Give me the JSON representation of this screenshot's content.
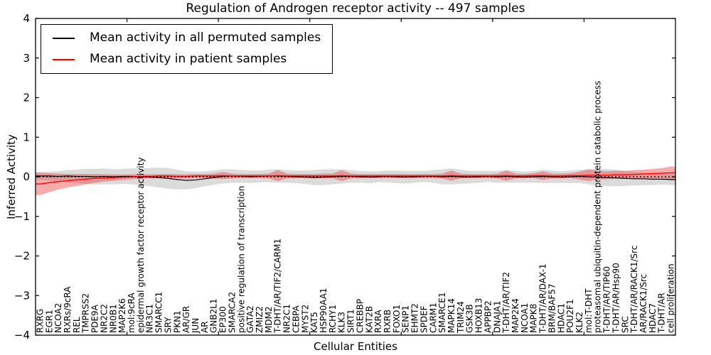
{
  "chart_data": {
    "type": "line",
    "title": "Regulation of Androgen receptor activity -- 497 samples",
    "xlabel": "Cellular Entities",
    "ylabel": "Inferred Activity",
    "ylim": [
      -4,
      4
    ],
    "yticks": [
      4,
      3,
      2,
      1,
      0,
      -1,
      -2,
      -3,
      -4
    ],
    "xtick_positions": [
      10,
      20,
      30,
      40,
      50,
      60
    ],
    "grid": false,
    "zero_line": {
      "style": "dashed",
      "color": "#000000",
      "y": 0
    },
    "legend": {
      "position": "upper-left",
      "border_color": "#000000"
    },
    "axis_color": "#000000",
    "categories": [
      "RXRG",
      "EGR1",
      "NCOA2",
      "RXRs/9cRA",
      "REL",
      "TMPRSS2",
      "PDE9A",
      "NR2C2",
      "NR0B1",
      "MAP2K6",
      "mol:9cRA",
      "epidermal growth factor receptor activity",
      "NR3C1",
      "SMARCC1",
      "SRY",
      "PKN1",
      "AR/GR",
      "JUN",
      "AR",
      "GNB2L1",
      "EP300",
      "SMARCA2",
      "positive regulation of transcription",
      "GATA2",
      "ZMIZ2",
      "MDM2",
      "T-DHT/AR/TIF2/CARM1",
      "NR2C1",
      "CEBPA",
      "MYST2",
      "KAT5",
      "HSP90AA1",
      "RCHY1",
      "KLK3",
      "SIRT1",
      "CREBBP",
      "KAT2B",
      "RXRA",
      "RXRB",
      "FOXO1",
      "SENP1",
      "EHMT2",
      "SPDEF",
      "CARM1",
      "SMARCE1",
      "MAPK14",
      "TRIM24",
      "GSK3B",
      "HOXB13",
      "APPBP2",
      "DNAJA1",
      "T-DHT/AR/TIF2",
      "MAP2K4",
      "NCOA1",
      "MAPK8",
      "T-DHT/AR/DAX-1",
      "BRM/BAF57",
      "HDAC1",
      "POU2F1",
      "KLK2",
      "mol:T-DHT",
      "proteasomal ubiquitin-dependent protein catabolic process",
      "T-DHT/AR/TIP60",
      "T-DHT/AR/Hsp90",
      "SRC",
      "T-DHT/AR/RACK1/Src",
      "AR/RACK1/Src",
      "HDAC7",
      "T-DHT/AR",
      "cell proliferation"
    ],
    "series": [
      {
        "name": "Mean activity in all permuted samples",
        "color": "#000000",
        "band_color": "rgba(0,0,0,0.14)",
        "values": [
          0.02,
          0.02,
          0.01,
          0.02,
          0.01,
          0.01,
          0.0,
          0.01,
          0.0,
          0.01,
          0.01,
          0.0,
          -0.01,
          -0.02,
          -0.04,
          -0.07,
          -0.09,
          -0.08,
          -0.05,
          -0.02,
          0.01,
          0.02,
          0.01,
          0.0,
          0.01,
          0.02,
          0.02,
          0.01,
          0.0,
          -0.01,
          -0.02,
          -0.01,
          0.0,
          0.01,
          0.01,
          0.0,
          -0.01,
          0.0,
          0.01,
          0.0,
          -0.01,
          0.0,
          0.01,
          0.01,
          0.0,
          0.01,
          0.0,
          -0.01,
          0.0,
          0.01,
          0.0,
          0.01,
          0.0,
          -0.01,
          0.0,
          0.01,
          0.0,
          -0.01,
          0.0,
          0.01,
          0.0,
          -0.01,
          -0.02,
          -0.03,
          -0.04,
          -0.05,
          -0.05,
          -0.06,
          -0.06,
          -0.07
        ],
        "band_halfwidth": [
          0.1,
          0.11,
          0.13,
          0.15,
          0.17,
          0.19,
          0.2,
          0.2,
          0.19,
          0.19,
          0.2,
          0.21,
          0.23,
          0.25,
          0.26,
          0.25,
          0.23,
          0.21,
          0.19,
          0.18,
          0.18,
          0.17,
          0.16,
          0.16,
          0.15,
          0.16,
          0.17,
          0.16,
          0.16,
          0.17,
          0.19,
          0.2,
          0.19,
          0.18,
          0.16,
          0.15,
          0.15,
          0.14,
          0.15,
          0.16,
          0.16,
          0.15,
          0.14,
          0.16,
          0.19,
          0.2,
          0.18,
          0.16,
          0.15,
          0.14,
          0.15,
          0.16,
          0.15,
          0.14,
          0.15,
          0.17,
          0.16,
          0.15,
          0.16,
          0.17,
          0.19,
          0.21,
          0.22,
          0.21,
          0.19,
          0.17,
          0.16,
          0.15,
          0.14,
          0.14
        ]
      },
      {
        "name": "Mean activity in patient samples",
        "color": "#ff0000",
        "band_color": "rgba(235,55,55,0.42)",
        "values": [
          -0.18,
          -0.15,
          -0.12,
          -0.1,
          -0.08,
          -0.06,
          -0.04,
          -0.03,
          -0.02,
          -0.01,
          0.0,
          0.01,
          0.01,
          0.02,
          0.02,
          0.01,
          0.01,
          0.02,
          0.02,
          0.02,
          0.03,
          0.02,
          0.02,
          0.02,
          0.02,
          0.02,
          0.03,
          0.02,
          0.02,
          0.02,
          0.02,
          0.02,
          0.02,
          0.03,
          0.02,
          0.02,
          0.02,
          0.02,
          0.02,
          0.02,
          0.02,
          0.02,
          0.02,
          0.02,
          0.02,
          0.03,
          0.02,
          0.02,
          0.02,
          0.02,
          0.02,
          0.03,
          0.02,
          0.02,
          0.03,
          0.03,
          0.02,
          0.02,
          0.03,
          0.03,
          0.04,
          0.04,
          0.04,
          0.05,
          0.05,
          0.06,
          0.07,
          0.08,
          0.09,
          0.1
        ],
        "band_halfwidth": [
          0.28,
          0.24,
          0.2,
          0.17,
          0.15,
          0.13,
          0.11,
          0.09,
          0.08,
          0.07,
          0.06,
          0.06,
          0.05,
          0.05,
          0.05,
          0.05,
          0.05,
          0.05,
          0.05,
          0.06,
          0.09,
          0.06,
          0.05,
          0.05,
          0.05,
          0.06,
          0.14,
          0.06,
          0.05,
          0.05,
          0.05,
          0.06,
          0.06,
          0.14,
          0.06,
          0.05,
          0.05,
          0.05,
          0.05,
          0.05,
          0.05,
          0.05,
          0.05,
          0.05,
          0.06,
          0.13,
          0.06,
          0.05,
          0.05,
          0.05,
          0.06,
          0.13,
          0.06,
          0.05,
          0.06,
          0.11,
          0.06,
          0.06,
          0.06,
          0.1,
          0.15,
          0.11,
          0.1,
          0.1,
          0.1,
          0.11,
          0.11,
          0.12,
          0.13,
          0.16
        ]
      }
    ]
  }
}
